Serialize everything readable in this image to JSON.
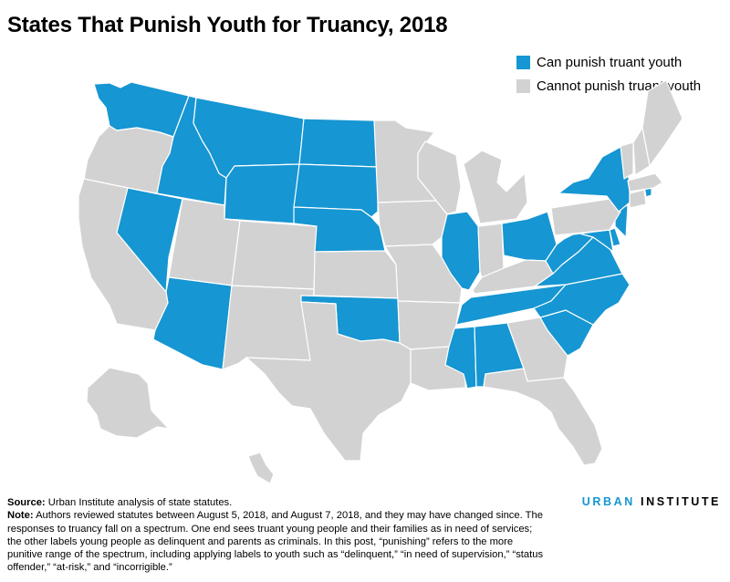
{
  "title": "States That Punish Youth for Truancy, 2018",
  "legend": {
    "items": [
      {
        "label": "Can punish truant youth",
        "color": "#1696d2"
      },
      {
        "label": "Cannot punish truant youth",
        "color": "#d2d2d2"
      }
    ]
  },
  "footer": {
    "source_label": "Source:",
    "source_text": "Urban Institute analysis of state statutes.",
    "note_label": "Note:",
    "note_text": "Authors reviewed statutes between August 5, 2018, and August 7, 2018, and they may have changed since. The responses to truancy fall on a spectrum. One end sees truant young people and their families as in need of services; the other labels young people as delinquent and parents as criminals. In this post, “punishing” refers to the more punitive range of the spectrum, including applying labels to youth such as “delinquent,” “in need of supervision,” “status offender,” “at-risk,” and “incorrigible.”"
  },
  "brand": {
    "part1": "URBAN",
    "part2": "INSTITUTE"
  },
  "colors": {
    "punish": "#1696d2",
    "no_punish": "#d2d2d2",
    "border": "#ffffff"
  },
  "map_data": {
    "states": [
      {
        "name": "Washington",
        "code": "WA",
        "punish": true
      },
      {
        "name": "Oregon",
        "code": "OR",
        "punish": false
      },
      {
        "name": "California",
        "code": "CA",
        "punish": false
      },
      {
        "name": "Idaho",
        "code": "ID",
        "punish": true
      },
      {
        "name": "Nevada",
        "code": "NV",
        "punish": true
      },
      {
        "name": "Montana",
        "code": "MT",
        "punish": true
      },
      {
        "name": "Wyoming",
        "code": "WY",
        "punish": true
      },
      {
        "name": "Utah",
        "code": "UT",
        "punish": false
      },
      {
        "name": "Arizona",
        "code": "AZ",
        "punish": true
      },
      {
        "name": "Colorado",
        "code": "CO",
        "punish": false
      },
      {
        "name": "New Mexico",
        "code": "NM",
        "punish": false
      },
      {
        "name": "North Dakota",
        "code": "ND",
        "punish": true
      },
      {
        "name": "South Dakota",
        "code": "SD",
        "punish": true
      },
      {
        "name": "Nebraska",
        "code": "NE",
        "punish": true
      },
      {
        "name": "Kansas",
        "code": "KS",
        "punish": false
      },
      {
        "name": "Oklahoma",
        "code": "OK",
        "punish": true
      },
      {
        "name": "Texas",
        "code": "TX",
        "punish": false
      },
      {
        "name": "Minnesota",
        "code": "MN",
        "punish": false
      },
      {
        "name": "Iowa",
        "code": "IA",
        "punish": false
      },
      {
        "name": "Missouri",
        "code": "MO",
        "punish": false
      },
      {
        "name": "Arkansas",
        "code": "AR",
        "punish": false
      },
      {
        "name": "Louisiana",
        "code": "LA",
        "punish": false
      },
      {
        "name": "Wisconsin",
        "code": "WI",
        "punish": false
      },
      {
        "name": "Illinois",
        "code": "IL",
        "punish": true
      },
      {
        "name": "Michigan",
        "code": "MI",
        "punish": false
      },
      {
        "name": "Indiana",
        "code": "IN",
        "punish": false
      },
      {
        "name": "Ohio",
        "code": "OH",
        "punish": true
      },
      {
        "name": "Kentucky",
        "code": "KY",
        "punish": false
      },
      {
        "name": "Tennessee",
        "code": "TN",
        "punish": true
      },
      {
        "name": "Mississippi",
        "code": "MS",
        "punish": true
      },
      {
        "name": "Alabama",
        "code": "AL",
        "punish": true
      },
      {
        "name": "Georgia",
        "code": "GA",
        "punish": false
      },
      {
        "name": "Florida",
        "code": "FL",
        "punish": false
      },
      {
        "name": "South Carolina",
        "code": "SC",
        "punish": true
      },
      {
        "name": "North Carolina",
        "code": "NC",
        "punish": true
      },
      {
        "name": "Virginia",
        "code": "VA",
        "punish": true
      },
      {
        "name": "West Virginia",
        "code": "WV",
        "punish": true
      },
      {
        "name": "Maryland",
        "code": "MD",
        "punish": true
      },
      {
        "name": "Delaware",
        "code": "DE",
        "punish": true
      },
      {
        "name": "New Jersey",
        "code": "NJ",
        "punish": true
      },
      {
        "name": "Pennsylvania",
        "code": "PA",
        "punish": false
      },
      {
        "name": "New York",
        "code": "NY",
        "punish": true
      },
      {
        "name": "Connecticut",
        "code": "CT",
        "punish": false
      },
      {
        "name": "Rhode Island",
        "code": "RI",
        "punish": true
      },
      {
        "name": "Massachusetts",
        "code": "MA",
        "punish": false
      },
      {
        "name": "Vermont",
        "code": "VT",
        "punish": false
      },
      {
        "name": "New Hampshire",
        "code": "NH",
        "punish": false
      },
      {
        "name": "Maine",
        "code": "ME",
        "punish": false
      },
      {
        "name": "Alaska",
        "code": "AK",
        "punish": false
      },
      {
        "name": "Hawaii",
        "code": "HI",
        "punish": false
      }
    ]
  }
}
